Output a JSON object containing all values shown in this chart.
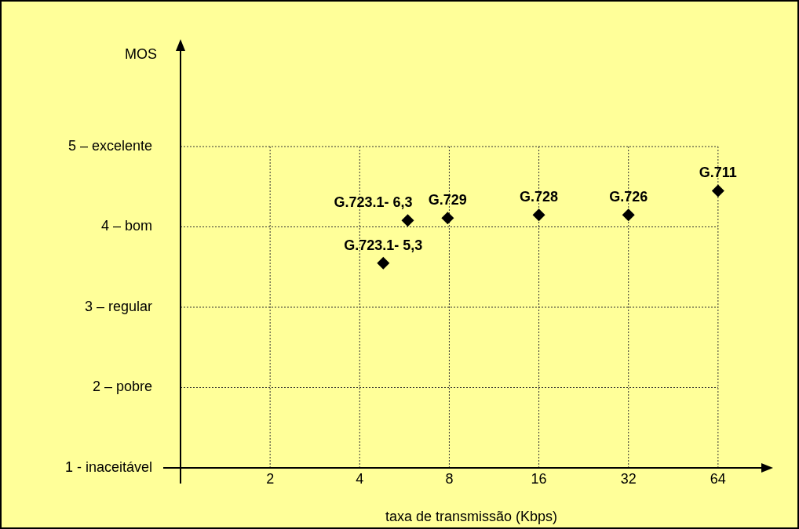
{
  "chart_data": {
    "type": "scatter",
    "xlabel": "taxa de transmissão (Kbps)",
    "ylabel": "MOS",
    "x": [
      4.8,
      5.8,
      7.9,
      16,
      32,
      64
    ],
    "series": [
      {
        "color": "#000000",
        "values": [
          3.55,
          4.08,
          4.11,
          4.15,
          4.15,
          4.45
        ]
      }
    ],
    "log": "x",
    "xlim": [
      1,
      90
    ],
    "xticks": [
      2,
      4,
      8,
      16,
      32,
      64
    ],
    "ylim": [
      1,
      6.2
    ],
    "yticks": [
      {
        "value": 1,
        "label": "1 - inaceitável"
      },
      {
        "value": 2,
        "label": "2 – pobre"
      },
      {
        "value": 3,
        "label": "3 – regular"
      },
      {
        "value": 4,
        "label": "4 – bom"
      },
      {
        "value": 5,
        "label": "5 – excelente"
      }
    ],
    "grid": true,
    "marker": "diamond",
    "legend": false,
    "annotations": [
      {
        "text": "G.723.1- 5,3",
        "x": 4.8,
        "y": 3.55
      },
      {
        "text": "G.723.1- 6,3",
        "x": 5.8,
        "y": 4.08
      },
      {
        "text": "G.729",
        "x": 7.9,
        "y": 4.11
      },
      {
        "text": "G.728",
        "x": 16,
        "y": 4.15
      },
      {
        "text": "G.726",
        "x": 32,
        "y": 4.15
      },
      {
        "text": "G.711",
        "x": 64,
        "y": 4.45
      }
    ]
  }
}
